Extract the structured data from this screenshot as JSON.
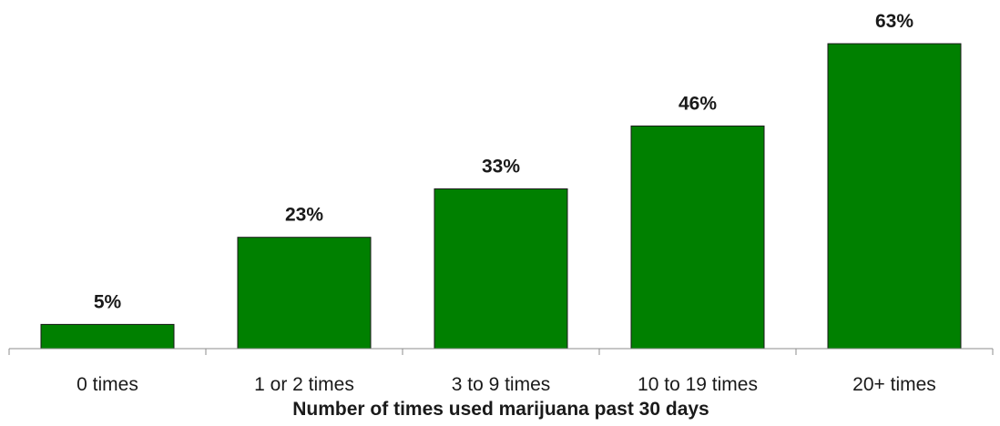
{
  "chart_data": {
    "type": "bar",
    "categories": [
      "0 times",
      "1 or 2 times",
      "3 to 9 times",
      "10 to 19 times",
      "20+ times"
    ],
    "values": [
      5,
      23,
      33,
      46,
      63
    ],
    "data_labels": [
      "5%",
      "23%",
      "33%",
      "46%",
      "63%"
    ],
    "xlabel": "Number of times used marijuana past 30 days",
    "ylabel": "",
    "ylim": [
      0,
      63
    ],
    "bar_color": "#008000",
    "grid": false,
    "legend": "none"
  }
}
